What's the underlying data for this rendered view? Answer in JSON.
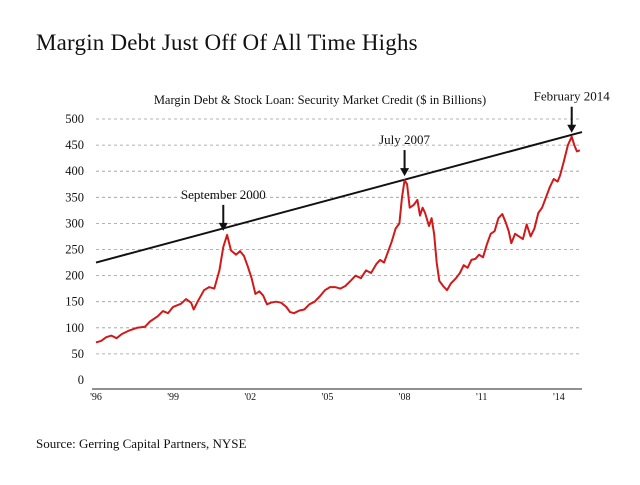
{
  "page": {
    "title": "Margin Debt Just Off Of All Time Highs",
    "source": "Source: Gerring Capital Partners, NYSE"
  },
  "colors": {
    "line": "#d01a1a",
    "trend": "#111111",
    "grid": "#9a9a9a",
    "text": "#111111"
  },
  "chart_data": {
    "type": "line",
    "title": "Margin Debt & Stock Loan: Security Market Credit ($ in Billions)",
    "xlabel": "",
    "ylabel": "",
    "xlim": [
      1996.0,
      2014.9
    ],
    "ylim": [
      0,
      500
    ],
    "yticks": [
      0,
      50,
      100,
      150,
      200,
      250,
      300,
      350,
      400,
      450,
      500
    ],
    "xticks": [
      {
        "value": 1996,
        "label": "'96"
      },
      {
        "value": 1999,
        "label": "'99"
      },
      {
        "value": 2002,
        "label": "'02"
      },
      {
        "value": 2005,
        "label": "'05"
      },
      {
        "value": 2008,
        "label": "'08"
      },
      {
        "value": 2011,
        "label": "'11"
      },
      {
        "value": 2014,
        "label": "'14"
      }
    ],
    "grid": "horizontal dashed",
    "series": [
      {
        "name": "",
        "points": [
          [
            1996.0,
            72
          ],
          [
            1996.2,
            75
          ],
          [
            1996.4,
            82
          ],
          [
            1996.6,
            85
          ],
          [
            1996.8,
            80
          ],
          [
            1997.0,
            88
          ],
          [
            1997.3,
            95
          ],
          [
            1997.6,
            100
          ],
          [
            1997.9,
            102
          ],
          [
            1998.1,
            112
          ],
          [
            1998.4,
            122
          ],
          [
            1998.6,
            132
          ],
          [
            1998.8,
            128
          ],
          [
            1999.0,
            140
          ],
          [
            1999.3,
            146
          ],
          [
            1999.5,
            155
          ],
          [
            1999.7,
            148
          ],
          [
            1999.8,
            135
          ],
          [
            1999.95,
            150
          ],
          [
            2000.2,
            172
          ],
          [
            2000.4,
            178
          ],
          [
            2000.6,
            175
          ],
          [
            2000.8,
            210
          ],
          [
            2000.95,
            255
          ],
          [
            2001.1,
            278
          ],
          [
            2001.25,
            248
          ],
          [
            2001.45,
            240
          ],
          [
            2001.6,
            247
          ],
          [
            2001.75,
            238
          ],
          [
            2001.9,
            218
          ],
          [
            2002.05,
            195
          ],
          [
            2002.2,
            165
          ],
          [
            2002.35,
            170
          ],
          [
            2002.5,
            162
          ],
          [
            2002.65,
            145
          ],
          [
            2002.8,
            148
          ],
          [
            2003.0,
            150
          ],
          [
            2003.2,
            148
          ],
          [
            2003.4,
            140
          ],
          [
            2003.55,
            130
          ],
          [
            2003.7,
            128
          ],
          [
            2003.9,
            133
          ],
          [
            2004.1,
            135
          ],
          [
            2004.3,
            145
          ],
          [
            2004.5,
            150
          ],
          [
            2004.7,
            160
          ],
          [
            2004.9,
            172
          ],
          [
            2005.1,
            178
          ],
          [
            2005.3,
            178
          ],
          [
            2005.5,
            175
          ],
          [
            2005.7,
            180
          ],
          [
            2005.9,
            190
          ],
          [
            2006.1,
            200
          ],
          [
            2006.3,
            195
          ],
          [
            2006.5,
            210
          ],
          [
            2006.7,
            205
          ],
          [
            2006.9,
            222
          ],
          [
            2007.05,
            230
          ],
          [
            2007.2,
            225
          ],
          [
            2007.35,
            245
          ],
          [
            2007.5,
            265
          ],
          [
            2007.65,
            290
          ],
          [
            2007.8,
            300
          ],
          [
            2007.9,
            350
          ],
          [
            2008.0,
            383
          ],
          [
            2008.1,
            375
          ],
          [
            2008.2,
            330
          ],
          [
            2008.35,
            335
          ],
          [
            2008.5,
            345
          ],
          [
            2008.6,
            315
          ],
          [
            2008.7,
            330
          ],
          [
            2008.8,
            320
          ],
          [
            2008.95,
            295
          ],
          [
            2009.05,
            310
          ],
          [
            2009.15,
            280
          ],
          [
            2009.25,
            225
          ],
          [
            2009.35,
            190
          ],
          [
            2009.5,
            180
          ],
          [
            2009.65,
            172
          ],
          [
            2009.8,
            185
          ],
          [
            2010.0,
            195
          ],
          [
            2010.15,
            205
          ],
          [
            2010.3,
            220
          ],
          [
            2010.45,
            215
          ],
          [
            2010.6,
            230
          ],
          [
            2010.75,
            232
          ],
          [
            2010.9,
            240
          ],
          [
            2011.05,
            235
          ],
          [
            2011.2,
            260
          ],
          [
            2011.35,
            280
          ],
          [
            2011.5,
            285
          ],
          [
            2011.65,
            310
          ],
          [
            2011.8,
            318
          ],
          [
            2011.95,
            300
          ],
          [
            2012.05,
            285
          ],
          [
            2012.15,
            262
          ],
          [
            2012.3,
            280
          ],
          [
            2012.45,
            275
          ],
          [
            2012.6,
            270
          ],
          [
            2012.75,
            298
          ],
          [
            2012.9,
            275
          ],
          [
            2013.05,
            290
          ],
          [
            2013.2,
            320
          ],
          [
            2013.35,
            330
          ],
          [
            2013.5,
            350
          ],
          [
            2013.65,
            370
          ],
          [
            2013.8,
            385
          ],
          [
            2013.95,
            380
          ],
          [
            2014.05,
            392
          ],
          [
            2014.2,
            420
          ],
          [
            2014.35,
            450
          ],
          [
            2014.5,
            466
          ],
          [
            2014.6,
            450
          ],
          [
            2014.7,
            438
          ],
          [
            2014.82,
            440
          ]
        ]
      }
    ],
    "trendline": [
      [
        1996.0,
        225
      ],
      [
        2014.9,
        475
      ]
    ],
    "annotations": [
      {
        "text": "September 2000",
        "x": 2000.95,
        "y": 278
      },
      {
        "text": "July 2007",
        "x": 2008.0,
        "y": 383
      },
      {
        "text": "February 2014",
        "x": 2014.5,
        "y": 466
      }
    ]
  }
}
